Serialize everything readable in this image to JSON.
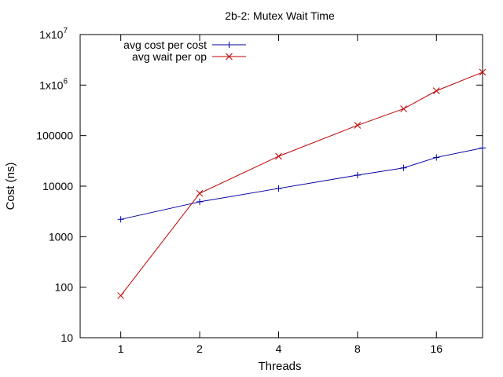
{
  "chart_data": {
    "type": "line",
    "title": "2b-2: Mutex Wait Time",
    "xlabel": "Threads",
    "ylabel": "Cost (ns)",
    "x_scale": "log2",
    "y_scale": "log10",
    "xlim": [
      0.7,
      24
    ],
    "ylim": [
      10,
      10000000
    ],
    "x_ticks": [
      {
        "value": 1,
        "label": "1"
      },
      {
        "value": 2,
        "label": "2"
      },
      {
        "value": 4,
        "label": "4"
      },
      {
        "value": 8,
        "label": "8"
      },
      {
        "value": 16,
        "label": "16"
      }
    ],
    "y_ticks": [
      {
        "value": 10,
        "label": "10"
      },
      {
        "value": 100,
        "label": "100"
      },
      {
        "value": 1000,
        "label": "1000"
      },
      {
        "value": 10000,
        "label": "10000"
      },
      {
        "value": 100000,
        "label": "100000"
      },
      {
        "value": 1000000,
        "label": "1x10",
        "sup": "6"
      },
      {
        "value": 10000000,
        "label": "1x10",
        "sup": "7"
      }
    ],
    "grid": false,
    "legend_position": "top-left",
    "series": [
      {
        "name": "avg cost per cost",
        "color": "#0000a0",
        "marker": "plus",
        "x": [
          1,
          2,
          4,
          8,
          12,
          16,
          24
        ],
        "y": [
          2200,
          4900,
          9000,
          16500,
          23000,
          37000,
          57000
        ]
      },
      {
        "name": "avg wait per op",
        "color": "#c00000",
        "marker": "cross",
        "x": [
          1,
          2,
          4,
          8,
          12,
          16,
          24
        ],
        "y": [
          68,
          7200,
          39000,
          160000,
          340000,
          770000,
          1800000
        ]
      }
    ]
  }
}
